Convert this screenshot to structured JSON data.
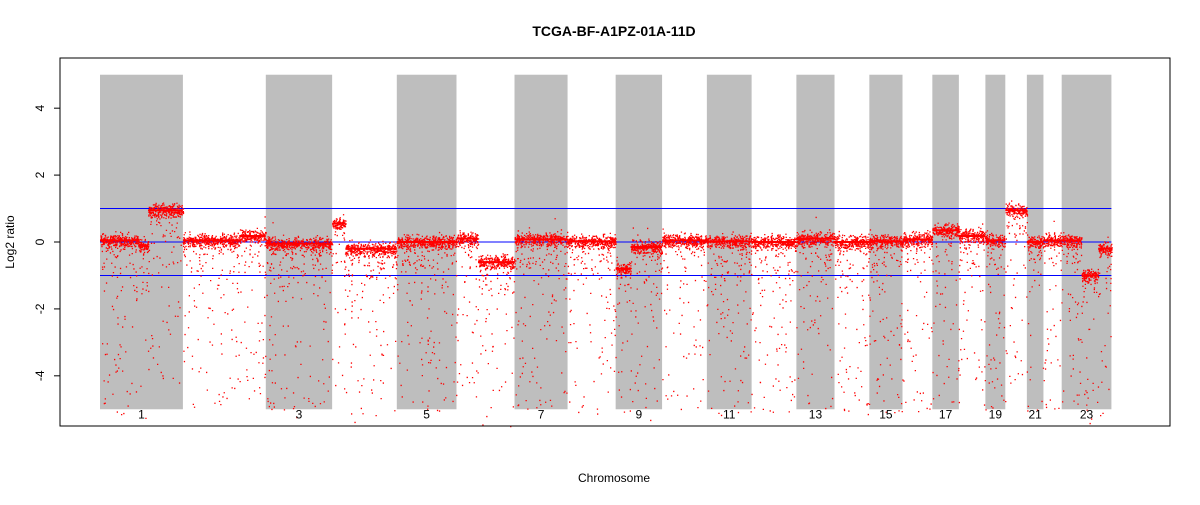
{
  "chart_data": {
    "type": "scatter",
    "title": "TCGA-BF-A1PZ-01A-11D",
    "xlabel": "Chromosome",
    "ylabel": "Log2 ratio",
    "ylim": [
      -5.5,
      5.5
    ],
    "yticks": [
      -4,
      -2,
      0,
      2,
      4
    ],
    "ytick_labels": [
      "-4",
      "-2",
      "0",
      "2",
      "4"
    ],
    "xlim": [
      0,
      3100
    ],
    "chromosome_labels": [
      "1",
      "3",
      "5",
      "7",
      "9",
      "11",
      "13",
      "15",
      "17",
      "19",
      "21",
      "23"
    ],
    "chromosomes": [
      {
        "id": "1",
        "start": 0,
        "end": 250,
        "shaded": true,
        "segments": [
          {
            "s": 0,
            "e": 115,
            "v": 0.05
          },
          {
            "s": 115,
            "e": 145,
            "v": -0.1
          },
          {
            "s": 145,
            "e": 250,
            "v": 0.95
          }
        ]
      },
      {
        "id": "2",
        "start": 250,
        "end": 500,
        "shaded": false,
        "segments": [
          {
            "s": 250,
            "e": 420,
            "v": 0.05
          },
          {
            "s": 420,
            "e": 500,
            "v": 0.18
          }
        ]
      },
      {
        "id": "3",
        "start": 500,
        "end": 700,
        "shaded": true,
        "segments": [
          {
            "s": 500,
            "e": 700,
            "v": -0.05
          }
        ]
      },
      {
        "id": "4",
        "start": 700,
        "end": 895,
        "shaded": false,
        "segments": [
          {
            "s": 700,
            "e": 740,
            "v": 0.55
          },
          {
            "s": 740,
            "e": 895,
            "v": -0.2
          }
        ]
      },
      {
        "id": "5",
        "start": 895,
        "end": 1075,
        "shaded": true,
        "segments": [
          {
            "s": 895,
            "e": 1075,
            "v": 0.0
          }
        ]
      },
      {
        "id": "6",
        "start": 1075,
        "end": 1250,
        "shaded": false,
        "segments": [
          {
            "s": 1075,
            "e": 1140,
            "v": 0.1
          },
          {
            "s": 1140,
            "e": 1250,
            "v": -0.6
          }
        ]
      },
      {
        "id": "7",
        "start": 1250,
        "end": 1410,
        "shaded": true,
        "segments": [
          {
            "s": 1250,
            "e": 1410,
            "v": 0.08
          }
        ]
      },
      {
        "id": "8",
        "start": 1410,
        "end": 1555,
        "shaded": false,
        "segments": [
          {
            "s": 1410,
            "e": 1555,
            "v": 0.02
          }
        ]
      },
      {
        "id": "9",
        "start": 1555,
        "end": 1695,
        "shaded": true,
        "segments": [
          {
            "s": 1555,
            "e": 1600,
            "v": -0.8
          },
          {
            "s": 1600,
            "e": 1695,
            "v": -0.15
          }
        ]
      },
      {
        "id": "10",
        "start": 1695,
        "end": 1830,
        "shaded": false,
        "segments": [
          {
            "s": 1695,
            "e": 1830,
            "v": 0.05
          }
        ]
      },
      {
        "id": "11",
        "start": 1830,
        "end": 1965,
        "shaded": true,
        "segments": [
          {
            "s": 1830,
            "e": 1965,
            "v": 0.02
          }
        ]
      },
      {
        "id": "12",
        "start": 1965,
        "end": 2100,
        "shaded": false,
        "segments": [
          {
            "s": 1965,
            "e": 2100,
            "v": 0.0
          }
        ]
      },
      {
        "id": "13",
        "start": 2100,
        "end": 2215,
        "shaded": true,
        "segments": [
          {
            "s": 2100,
            "e": 2215,
            "v": 0.1
          }
        ]
      },
      {
        "id": "14",
        "start": 2215,
        "end": 2320,
        "shaded": false,
        "segments": [
          {
            "s": 2215,
            "e": 2320,
            "v": 0.0
          }
        ]
      },
      {
        "id": "15",
        "start": 2320,
        "end": 2420,
        "shaded": true,
        "segments": [
          {
            "s": 2320,
            "e": 2420,
            "v": 0.02
          }
        ]
      },
      {
        "id": "16",
        "start": 2420,
        "end": 2510,
        "shaded": false,
        "segments": [
          {
            "s": 2420,
            "e": 2510,
            "v": 0.08
          }
        ]
      },
      {
        "id": "17",
        "start": 2510,
        "end": 2590,
        "shaded": true,
        "segments": [
          {
            "s": 2510,
            "e": 2590,
            "v": 0.35
          }
        ]
      },
      {
        "id": "18",
        "start": 2590,
        "end": 2670,
        "shaded": false,
        "segments": [
          {
            "s": 2590,
            "e": 2670,
            "v": 0.18
          }
        ]
      },
      {
        "id": "19",
        "start": 2670,
        "end": 2730,
        "shaded": true,
        "segments": [
          {
            "s": 2670,
            "e": 2730,
            "v": 0.05
          }
        ]
      },
      {
        "id": "20",
        "start": 2730,
        "end": 2795,
        "shaded": false,
        "segments": [
          {
            "s": 2730,
            "e": 2795,
            "v": 0.95
          }
        ]
      },
      {
        "id": "21",
        "start": 2795,
        "end": 2845,
        "shaded": true,
        "segments": [
          {
            "s": 2795,
            "e": 2845,
            "v": 0.0
          }
        ]
      },
      {
        "id": "22",
        "start": 2845,
        "end": 2900,
        "shaded": false,
        "segments": [
          {
            "s": 2845,
            "e": 2900,
            "v": 0.05
          }
        ]
      },
      {
        "id": "23",
        "start": 2900,
        "end": 3050,
        "shaded": true,
        "segments": [
          {
            "s": 2900,
            "e": 2960,
            "v": 0.05
          },
          {
            "s": 2960,
            "e": 3010,
            "v": -1.0
          },
          {
            "s": 3010,
            "e": 3050,
            "v": -0.2
          }
        ]
      }
    ],
    "reference_lines": [
      1,
      0,
      -1
    ],
    "grid": false,
    "legend": "none",
    "colors": {
      "points": "#ff0000",
      "reference_lines": "#0000ff",
      "shaded_band": "#bebebe",
      "axis": "#000000"
    }
  }
}
